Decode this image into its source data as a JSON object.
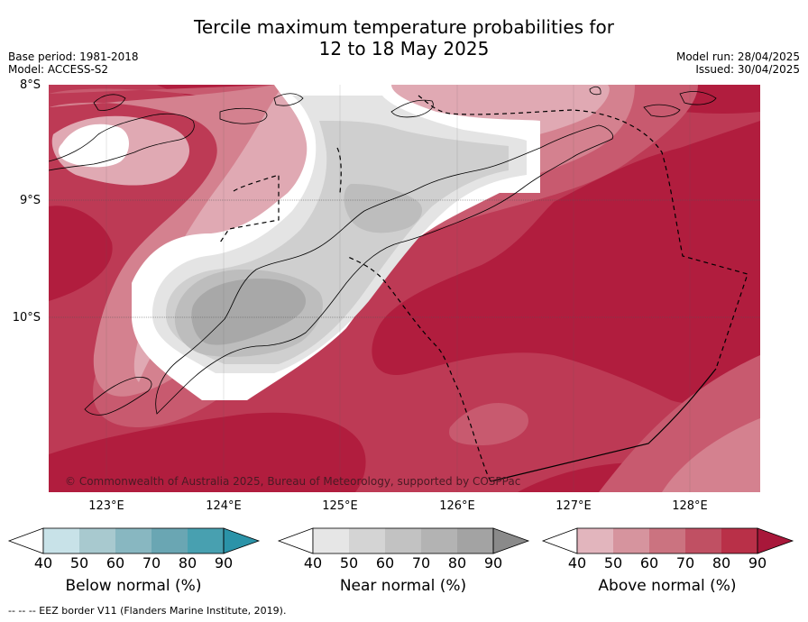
{
  "title": {
    "line1": "Tercile maximum temperature probabilities for",
    "line2": "12 to 18 May 2025"
  },
  "meta": {
    "base_period": "Base period: 1981-2018",
    "model": "Model: ACCESS-S2",
    "model_run": "Model run: 28/04/2025",
    "issued": "Issued: 30/04/2025"
  },
  "map": {
    "lat_labels": [
      "8°S",
      "9°S",
      "10°S"
    ],
    "lon_labels": [
      "123°E",
      "124°E",
      "125°E",
      "126°E",
      "127°E",
      "128°E"
    ],
    "copyright": "© Commonwealth of Australia 2025, Bureau of Meteorology, supported by COSPPac",
    "colors": {
      "land_outline": "#000000",
      "eez_border": "#000000",
      "above_90": "#b11d3e",
      "above_80": "#bd3a55",
      "above_70": "#c85a6f",
      "above_60": "#d4818f",
      "above_50": "#e0a9b3",
      "near_60": "#cfcfcf",
      "near_70": "#bdbdbd",
      "near_80": "#a8a8a8",
      "near_50": "#e4e4e4"
    }
  },
  "colorbars": [
    {
      "label": "Below normal (%)",
      "ticks": [
        "40",
        "50",
        "60",
        "70",
        "80",
        "90"
      ],
      "colors": [
        "#c8e2e8",
        "#a8c9cf",
        "#88b7c1",
        "#6aa6b3",
        "#48a0b0",
        "#2b93a8"
      ]
    },
    {
      "label": "Near normal (%)",
      "ticks": [
        "40",
        "50",
        "60",
        "70",
        "80",
        "90"
      ],
      "colors": [
        "#e6e6e6",
        "#d4d4d4",
        "#c2c2c2",
        "#b3b3b3",
        "#a3a3a3",
        "#8a8a8a"
      ]
    },
    {
      "label": "Above normal (%)",
      "ticks": [
        "40",
        "50",
        "60",
        "70",
        "80",
        "90"
      ],
      "colors": [
        "#e2b5bd",
        "#d6949e",
        "#cb7380",
        "#c05063",
        "#b93048",
        "#a8173a"
      ]
    }
  ],
  "footnote": "--  --  -- EEZ border V11 (Flanders Marine Institute, 2019)."
}
